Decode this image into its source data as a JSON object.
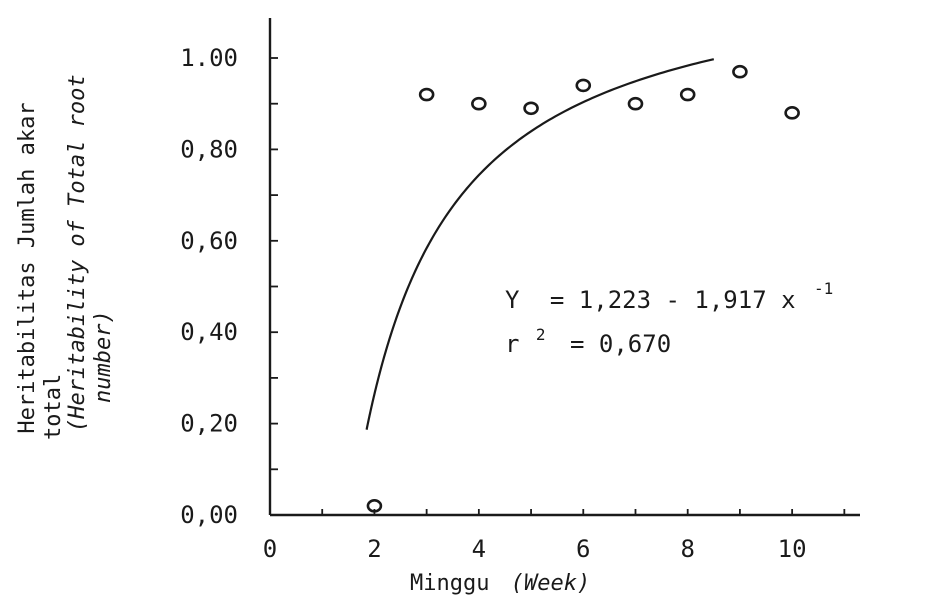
{
  "chart_data": {
    "type": "scatter",
    "x": [
      2,
      3,
      4,
      5,
      6,
      7,
      8,
      9,
      10
    ],
    "y": [
      0.02,
      0.92,
      0.9,
      0.89,
      0.94,
      0.9,
      0.92,
      0.97,
      0.88
    ],
    "fit": {
      "function": "Y = 1.223 - 1.917 / x",
      "x_range": [
        1.85,
        8.5
      ]
    },
    "xlim": [
      0,
      11.3
    ],
    "ylim": [
      0,
      1.0
    ],
    "xticks": [
      "0",
      "2",
      "4",
      "6",
      "8",
      "10"
    ],
    "yticks": [
      "0,00",
      "0,20",
      "0,40",
      "0,60",
      "0,80",
      "1.00"
    ],
    "xlabel": {
      "main": "Minggu",
      "italic": "(Week)"
    },
    "ylabel": {
      "line1": "Heritabilitas Jumlah akar",
      "line2": "total",
      "line3": "(Heritability of Total root",
      "line4": "number)"
    },
    "equation": {
      "y_var": "Y",
      "rhs": "= 1,223 - 1,917 x",
      "rhs_sup": "-1",
      "r_var": "r",
      "r_sup": "2",
      "r_rhs": "= 0,670"
    },
    "grid": false,
    "colors": {
      "ink": "#1a1a1a",
      "background": "#ffffff"
    }
  }
}
